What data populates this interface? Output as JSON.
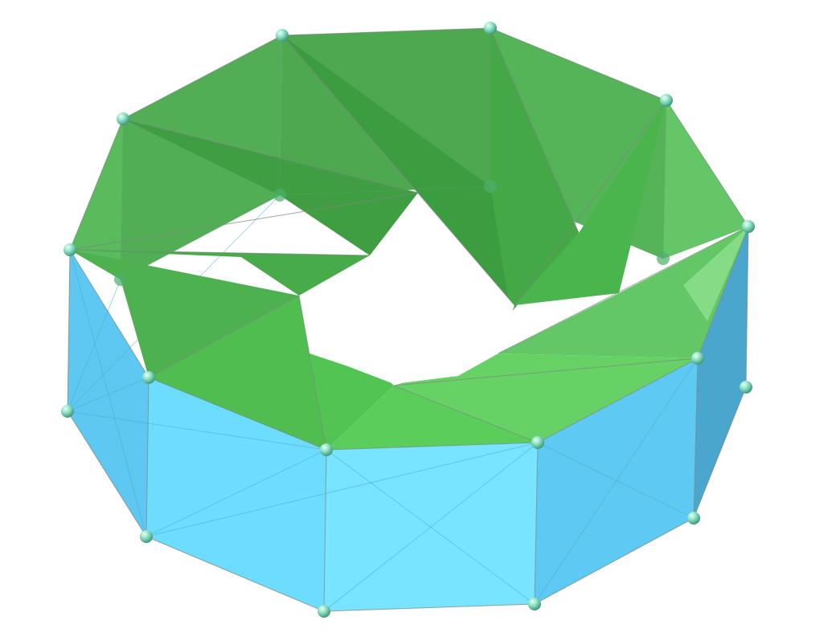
{
  "figure": {
    "kind": "polyhedral-torus-render",
    "vertex_count": 24,
    "colors": {
      "background": "#ffffff",
      "top_dark": "#3f9a46",
      "top_mid": "#4fb653",
      "top_light": "#6fd06a",
      "top_highlight": "#86dc86",
      "side_light": "#74e2ff",
      "side_mid": "#63d6f7",
      "side_dark": "#4aa6cc",
      "edge": "#7a8a80",
      "vertex": "#8fe3c6"
    }
  }
}
